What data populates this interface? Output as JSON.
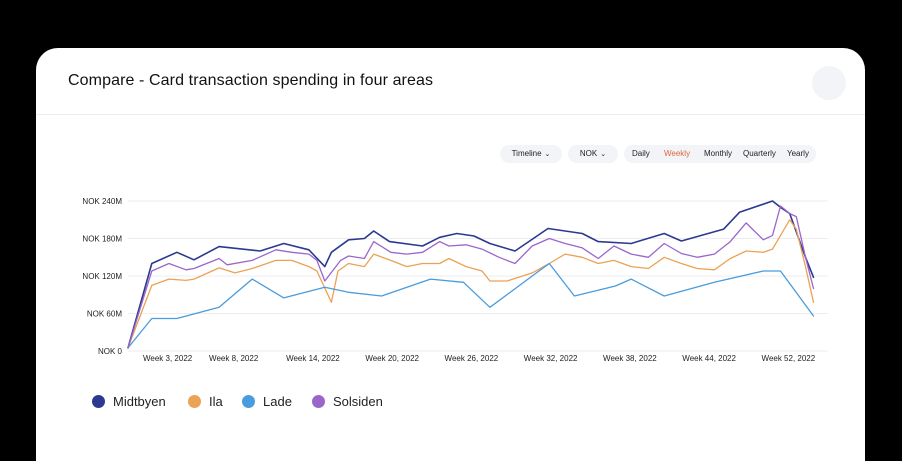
{
  "header": {
    "title": "Compare - Card transaction spending in four areas"
  },
  "controls": {
    "timeline_label": "Timeline",
    "currency_label": "NOK",
    "periods": [
      "Daily",
      "Weekly",
      "Monthly",
      "Quarterly",
      "Yearly"
    ],
    "active_period": "Weekly",
    "active_color": "#e0683a"
  },
  "chart_data": {
    "type": "line",
    "title": "Compare - Card transaction spending in four areas",
    "xlabel": "",
    "ylabel": "",
    "ylim": [
      0,
      240
    ],
    "yticks": [
      {
        "value": 0,
        "label": "NOK 0"
      },
      {
        "value": 60,
        "label": "NOK 60M"
      },
      {
        "value": 120,
        "label": "NOK 120M"
      },
      {
        "value": 180,
        "label": "NOK 180M"
      },
      {
        "value": 240,
        "label": "NOK 240M"
      }
    ],
    "x_range": [
      0,
      53
    ],
    "xticks": [
      {
        "x": 3,
        "label": "Week 3, 2022"
      },
      {
        "x": 8,
        "label": "Week 8, 2022"
      },
      {
        "x": 14,
        "label": "Week 14, 2022"
      },
      {
        "x": 20,
        "label": "Week 20, 2022"
      },
      {
        "x": 26,
        "label": "Week 26, 2022"
      },
      {
        "x": 32,
        "label": "Week 32, 2022"
      },
      {
        "x": 38,
        "label": "Week 38, 2022"
      },
      {
        "x": 44,
        "label": "Week 44, 2022"
      },
      {
        "x": 50,
        "label": "Week 52, 2022"
      }
    ],
    "legend_position": "bottom",
    "series": [
      {
        "name": "Midtbyen",
        "color": "#2b3990",
        "points": [
          [
            0,
            5
          ],
          [
            1.8,
            140
          ],
          [
            3.7,
            158
          ],
          [
            5,
            146
          ],
          [
            6.9,
            167
          ],
          [
            10,
            160
          ],
          [
            11.8,
            172
          ],
          [
            13.7,
            162
          ],
          [
            14.9,
            135
          ],
          [
            15.4,
            158
          ],
          [
            16.7,
            178
          ],
          [
            17.9,
            180
          ],
          [
            18.6,
            192
          ],
          [
            19.8,
            175
          ],
          [
            22.3,
            168
          ],
          [
            23.6,
            182
          ],
          [
            24.9,
            188
          ],
          [
            26.2,
            184
          ],
          [
            27.4,
            172
          ],
          [
            29.3,
            160
          ],
          [
            31.8,
            196
          ],
          [
            34.4,
            188
          ],
          [
            35.6,
            175
          ],
          [
            38.1,
            172
          ],
          [
            40.6,
            188
          ],
          [
            41.9,
            176
          ],
          [
            45.1,
            195
          ],
          [
            46.3,
            222
          ],
          [
            48.8,
            240
          ],
          [
            49.4,
            230
          ],
          [
            50.1,
            220
          ],
          [
            51.3,
            150
          ],
          [
            51.9,
            118
          ]
        ]
      },
      {
        "name": "Ila",
        "color": "#eba254",
        "points": [
          [
            0,
            5
          ],
          [
            1.8,
            105
          ],
          [
            3.1,
            115
          ],
          [
            4.4,
            113
          ],
          [
            5,
            115
          ],
          [
            6.9,
            133
          ],
          [
            8.1,
            125
          ],
          [
            9.4,
            132
          ],
          [
            11.2,
            145
          ],
          [
            12.4,
            145
          ],
          [
            13.7,
            135
          ],
          [
            14.3,
            128
          ],
          [
            15.4,
            78
          ],
          [
            15.9,
            128
          ],
          [
            16.7,
            140
          ],
          [
            17.9,
            135
          ],
          [
            18.6,
            155
          ],
          [
            19.9,
            145
          ],
          [
            21.1,
            135
          ],
          [
            22.3,
            140
          ],
          [
            23.6,
            140
          ],
          [
            24.3,
            148
          ],
          [
            25.6,
            135
          ],
          [
            26.8,
            128
          ],
          [
            27.4,
            112
          ],
          [
            28.7,
            112
          ],
          [
            30.6,
            125
          ],
          [
            31.9,
            140
          ],
          [
            33.1,
            155
          ],
          [
            34.4,
            150
          ],
          [
            35.6,
            140
          ],
          [
            36.8,
            145
          ],
          [
            38.1,
            135
          ],
          [
            39.4,
            132
          ],
          [
            40.6,
            150
          ],
          [
            41.9,
            140
          ],
          [
            43.1,
            132
          ],
          [
            44.4,
            130
          ],
          [
            45.6,
            148
          ],
          [
            46.8,
            160
          ],
          [
            48.1,
            158
          ],
          [
            48.8,
            163
          ],
          [
            50.1,
            210
          ],
          [
            50.6,
            195
          ],
          [
            51.3,
            135
          ],
          [
            51.9,
            78
          ]
        ]
      },
      {
        "name": "Lade",
        "color": "#4a9cdc",
        "points": [
          [
            0,
            5
          ],
          [
            1.8,
            52
          ],
          [
            3.7,
            52
          ],
          [
            6.9,
            70
          ],
          [
            9.4,
            115
          ],
          [
            11.8,
            85
          ],
          [
            14.9,
            102
          ],
          [
            16.7,
            94
          ],
          [
            19.2,
            88
          ],
          [
            22.9,
            115
          ],
          [
            25.4,
            110
          ],
          [
            27.4,
            70
          ],
          [
            30.6,
            120
          ],
          [
            31.9,
            140
          ],
          [
            33.8,
            88
          ],
          [
            36.9,
            104
          ],
          [
            38.1,
            115
          ],
          [
            40.6,
            88
          ],
          [
            44.4,
            110
          ],
          [
            48.1,
            128
          ],
          [
            49.4,
            128
          ],
          [
            51.9,
            56
          ]
        ]
      },
      {
        "name": "Solsiden",
        "color": "#9a66cc",
        "points": [
          [
            0,
            5
          ],
          [
            1.8,
            128
          ],
          [
            3.1,
            140
          ],
          [
            4.4,
            130
          ],
          [
            5,
            132
          ],
          [
            6.9,
            148
          ],
          [
            7.5,
            138
          ],
          [
            9.4,
            145
          ],
          [
            11.2,
            162
          ],
          [
            12.4,
            158
          ],
          [
            13.7,
            155
          ],
          [
            14.3,
            145
          ],
          [
            14.9,
            112
          ],
          [
            16.1,
            145
          ],
          [
            16.7,
            152
          ],
          [
            17.9,
            148
          ],
          [
            18.6,
            175
          ],
          [
            19.9,
            158
          ],
          [
            21.1,
            155
          ],
          [
            22.3,
            158
          ],
          [
            23.6,
            175
          ],
          [
            24.3,
            168
          ],
          [
            25.6,
            170
          ],
          [
            26.8,
            163
          ],
          [
            28.1,
            150
          ],
          [
            29.3,
            140
          ],
          [
            30.6,
            168
          ],
          [
            31.9,
            180
          ],
          [
            33.1,
            172
          ],
          [
            34.4,
            165
          ],
          [
            35.6,
            148
          ],
          [
            36.8,
            168
          ],
          [
            38.1,
            155
          ],
          [
            39.4,
            150
          ],
          [
            40.6,
            172
          ],
          [
            41.9,
            156
          ],
          [
            43.1,
            150
          ],
          [
            44.4,
            155
          ],
          [
            45.6,
            175
          ],
          [
            46.8,
            205
          ],
          [
            48.1,
            178
          ],
          [
            48.8,
            185
          ],
          [
            49.4,
            232
          ],
          [
            50.1,
            220
          ],
          [
            50.6,
            215
          ],
          [
            51.3,
            150
          ],
          [
            51.9,
            100
          ]
        ]
      }
    ]
  }
}
